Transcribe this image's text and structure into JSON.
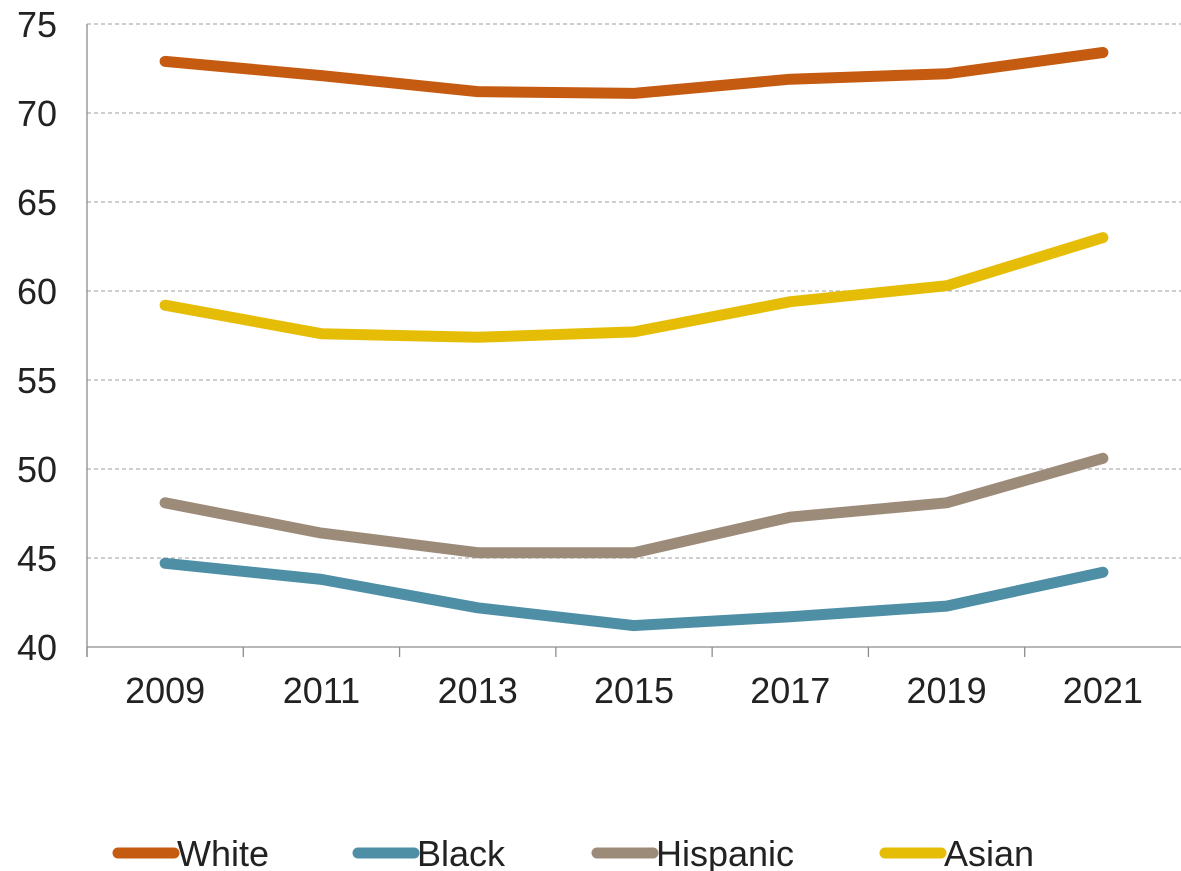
{
  "chart_data": {
    "type": "line",
    "title": "",
    "xlabel": "",
    "ylabel": "",
    "x": [
      "2009",
      "2011",
      "2013",
      "2015",
      "2017",
      "2019",
      "2021"
    ],
    "ylim": [
      40,
      75
    ],
    "yticks": [
      "40",
      "45",
      "50",
      "55",
      "60",
      "65",
      "70",
      "75"
    ],
    "grid": "horizontal dashed",
    "legend_position": "bottom",
    "series": [
      {
        "name": "White",
        "color": "#C55A11",
        "values": [
          72.9,
          72.1,
          71.2,
          71.1,
          71.9,
          72.2,
          73.4
        ]
      },
      {
        "name": "Black",
        "color": "#4E8FA6",
        "values": [
          44.7,
          43.8,
          42.2,
          41.2,
          41.7,
          42.3,
          44.2
        ]
      },
      {
        "name": "Hispanic",
        "color": "#9D8B7A",
        "values": [
          48.1,
          46.4,
          45.3,
          45.3,
          47.3,
          48.1,
          50.6
        ]
      },
      {
        "name": "Asian",
        "color": "#E6BD06",
        "values": [
          59.2,
          57.6,
          57.4,
          57.7,
          59.4,
          60.3,
          63.0
        ]
      }
    ]
  }
}
